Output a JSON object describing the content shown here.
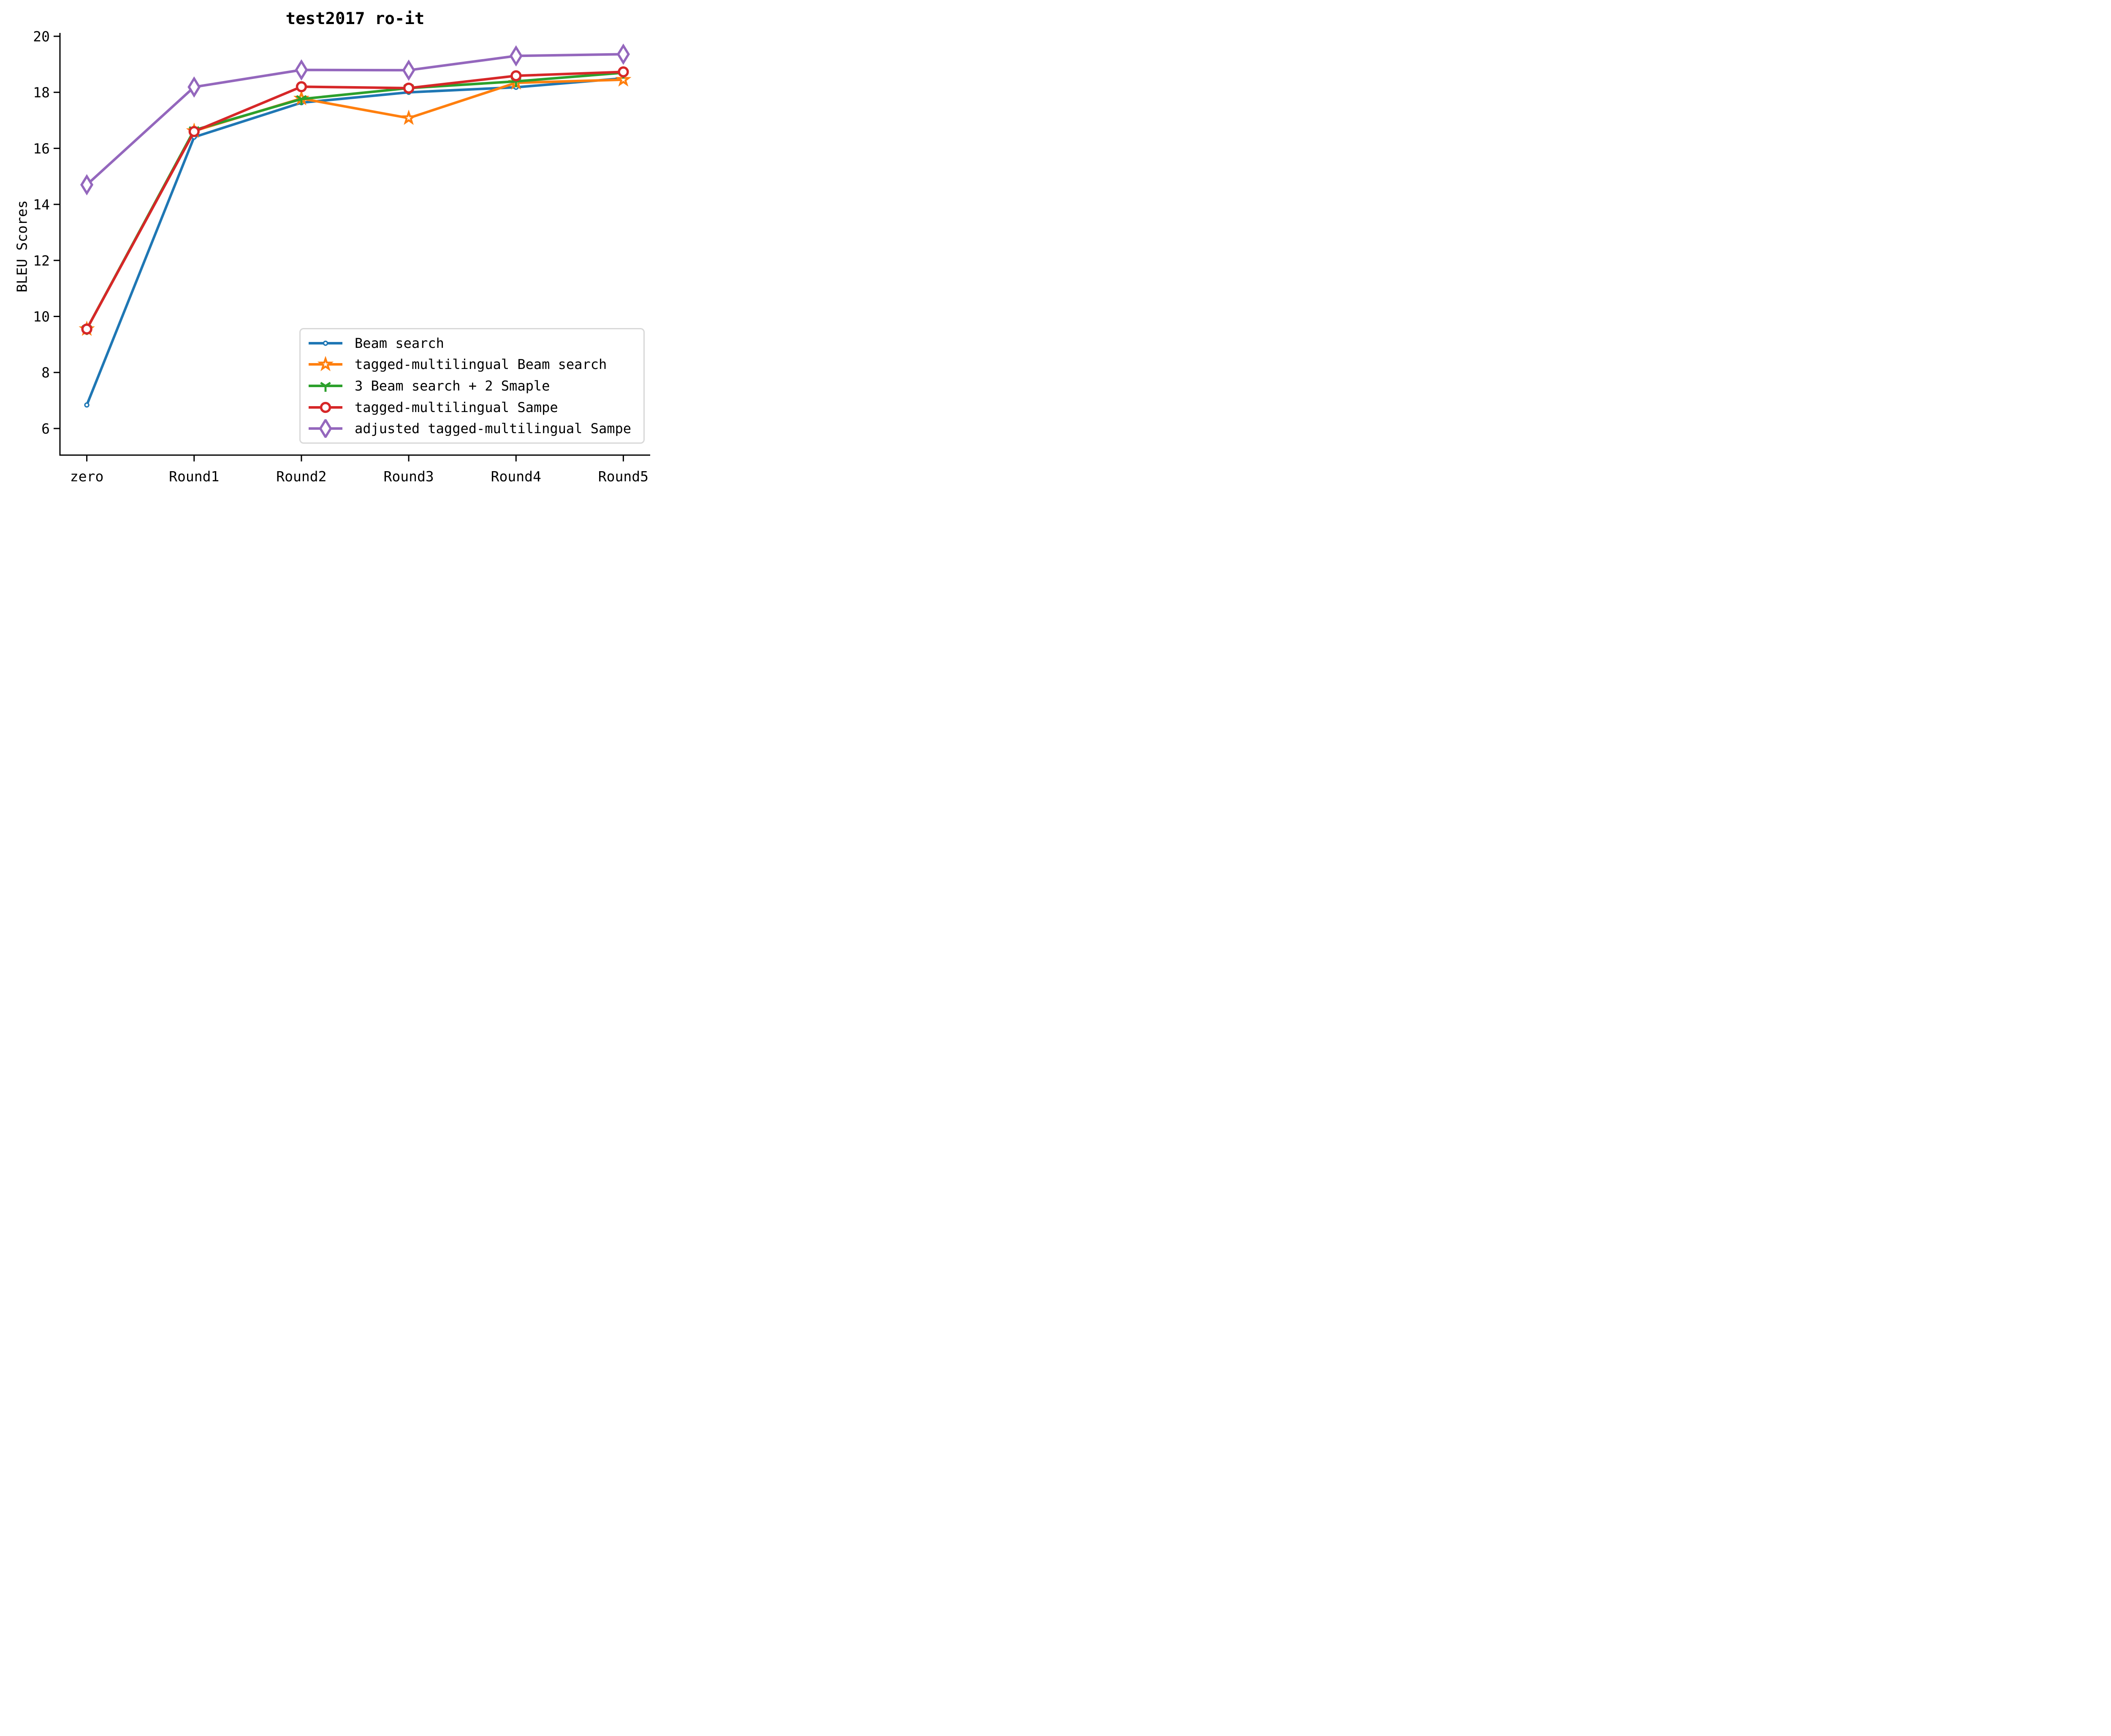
{
  "title": "test2017 ro-it",
  "axes": {
    "ylabel": "BLEU Scores",
    "xlabel": "",
    "yticks": [
      6,
      8,
      10,
      12,
      14,
      16,
      18,
      20
    ],
    "xticklabels": [
      "zero",
      "Round1",
      "Round2",
      "Round3",
      "Round4",
      "Round5"
    ]
  },
  "legend": {
    "position": "lower right",
    "border_color": "#d8d8d8"
  },
  "chart_data": {
    "type": "line",
    "title": "test2017 ro-it",
    "xlabel": "",
    "ylabel": "BLEU Scores",
    "categories": [
      "zero",
      "Round1",
      "Round2",
      "Round3",
      "Round4",
      "Round5"
    ],
    "ylim": [
      5.05,
      20.12
    ],
    "yticks": [
      6,
      8,
      10,
      12,
      14,
      16,
      18,
      20
    ],
    "grid": false,
    "legend_position": "lower right",
    "series": [
      {
        "name": "Beam search",
        "color": "#1f77b4",
        "marker": "circle-small",
        "values": [
          6.84,
          16.4,
          17.63,
          18.0,
          18.18,
          18.5
        ]
      },
      {
        "name": "tagged-multilingual Beam search",
        "color": "#ff7f0e",
        "marker": "star",
        "values": [
          9.55,
          16.62,
          17.78,
          17.08,
          18.34,
          18.45
        ]
      },
      {
        "name": "3 Beam search + 2 Smaple",
        "color": "#2ca02c",
        "marker": "tri-down",
        "values": [
          9.55,
          16.65,
          17.76,
          18.15,
          18.39,
          18.7
        ]
      },
      {
        "name": "tagged-multilingual Sampe",
        "color": "#d62728",
        "marker": "circle-large",
        "values": [
          9.55,
          16.6,
          18.2,
          18.15,
          18.59,
          18.73
        ]
      },
      {
        "name": "adjusted tagged-multilingual Sampe",
        "color": "#9467bd",
        "marker": "diamond-thin",
        "values": [
          14.7,
          18.19,
          18.8,
          18.79,
          19.3,
          19.36
        ]
      }
    ]
  }
}
